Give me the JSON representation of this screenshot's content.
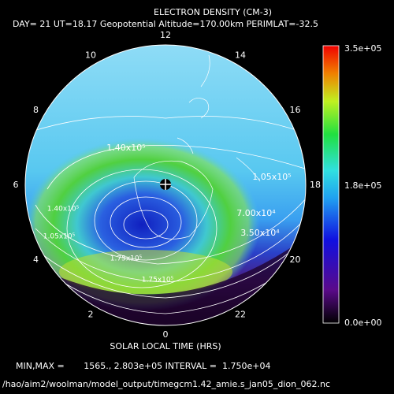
{
  "title": "ELECTRON DENSITY (CM-3)",
  "subtitle": "DAY= 21 UT=18.17 Geopotential Altitude=170.00km PERIMLAT=-32.5",
  "clock_labels": [
    "12",
    "14",
    "16",
    "18",
    "20",
    "22",
    "0",
    "2",
    "4",
    "6",
    "8",
    "10"
  ],
  "contour_labels": [
    "1.40x10⁵",
    "1.05x10⁵",
    "7.00x10⁴",
    "3.50x10⁴",
    "1.40x10⁵",
    "1.05x10⁵",
    "1.75x10⁵",
    "1.75x10⁵"
  ],
  "colorbar": {
    "labels": [
      "3.5e+05",
      "1.8e+05",
      "0.0e+00"
    ]
  },
  "x_axis_label": "SOLAR LOCAL TIME (HRS)",
  "stats": "MIN,MAX =       1565., 2.803e+05 INTERVAL =  1.750e+04",
  "file_path": "/hao/aim2/woolman/model_output/timegcm1.42_amie.s_jan05_dion_062.nc"
}
